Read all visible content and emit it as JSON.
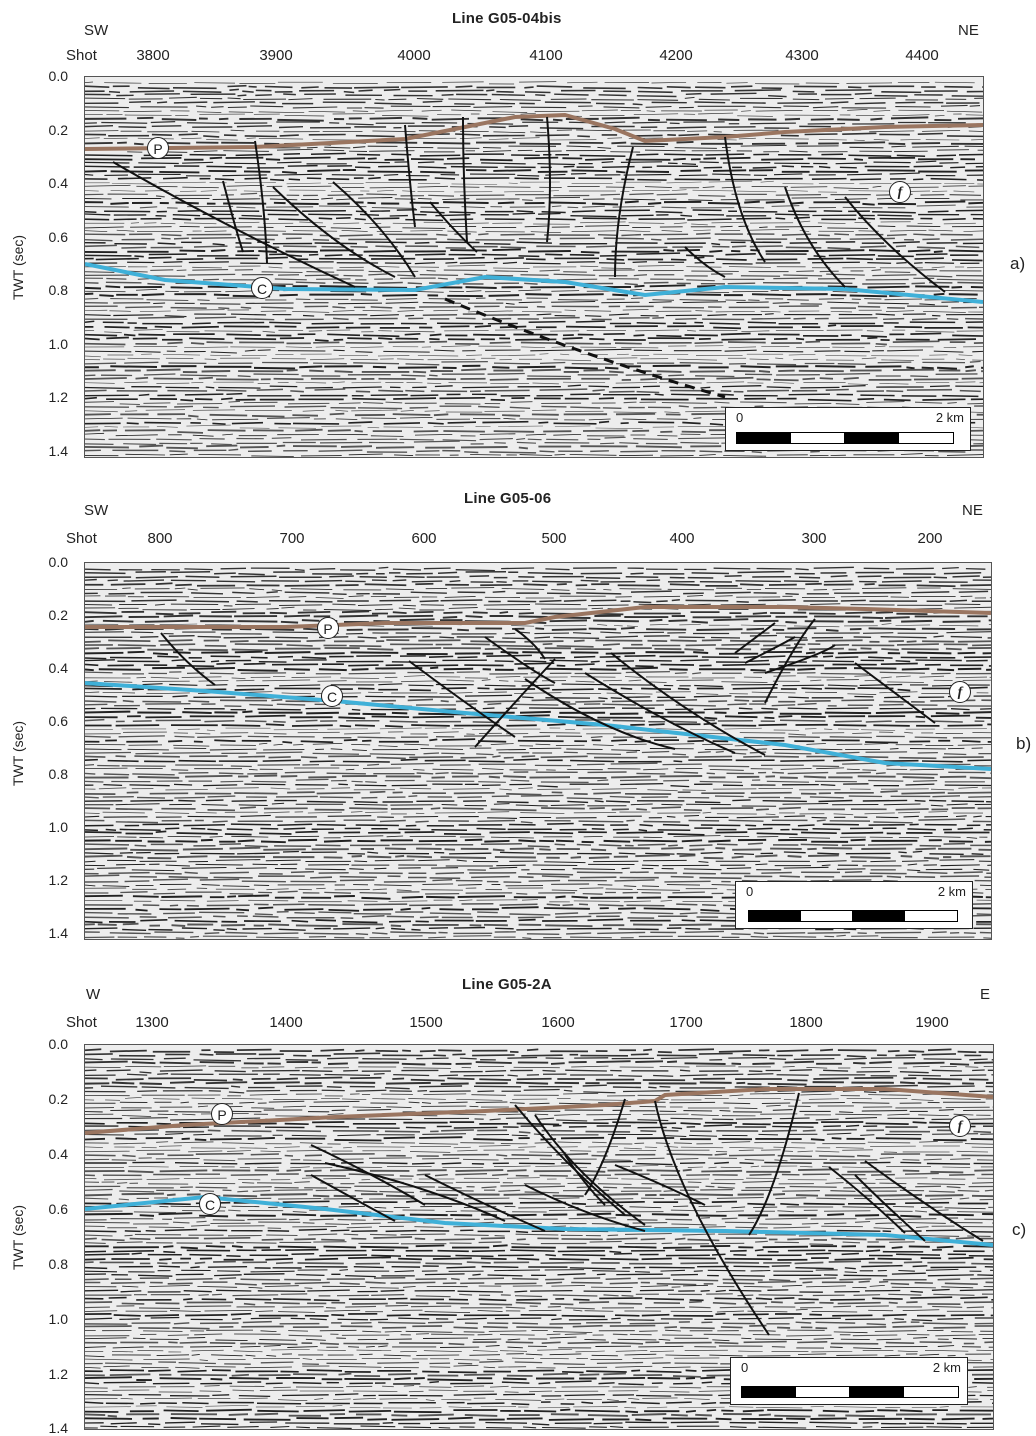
{
  "y_axis_label": "TWT (sec)",
  "y_ticks": [
    "0.0",
    "0.2",
    "0.4",
    "0.6",
    "0.8",
    "1.0",
    "1.2",
    "1.4"
  ],
  "shot_label": "Shot",
  "scale_bar": {
    "left": "0",
    "right": "2 km"
  },
  "panels": [
    {
      "title": "Line G05-04bis",
      "dir_left": "SW",
      "dir_right": "NE",
      "shots": [
        "3800",
        "3900",
        "4000",
        "4100",
        "4200",
        "4300",
        "4400"
      ],
      "label": "a)",
      "horizon_labels": {
        "p": "P",
        "c": "C",
        "f": "f"
      },
      "colors": {
        "p_horizon": "#9a7560",
        "c_horizon": "#3fb0d8"
      }
    },
    {
      "title": "Line G05-06",
      "dir_left": "SW",
      "dir_right": "NE",
      "shots": [
        "800",
        "700",
        "600",
        "500",
        "400",
        "300",
        "200"
      ],
      "label": "b)",
      "horizon_labels": {
        "p": "P",
        "c": "C",
        "f": "f"
      },
      "colors": {
        "p_horizon": "#9a7560",
        "c_horizon": "#3fb0d8"
      }
    },
    {
      "title": "Line G05-2A",
      "dir_left": "W",
      "dir_right": "E",
      "shots": [
        "1300",
        "1400",
        "1500",
        "1600",
        "1700",
        "1800",
        "1900"
      ],
      "label": "c)",
      "horizon_labels": {
        "p": "P",
        "c": "C",
        "f": "f"
      },
      "colors": {
        "p_horizon": "#9a7560",
        "c_horizon": "#3fb0d8"
      }
    }
  ]
}
